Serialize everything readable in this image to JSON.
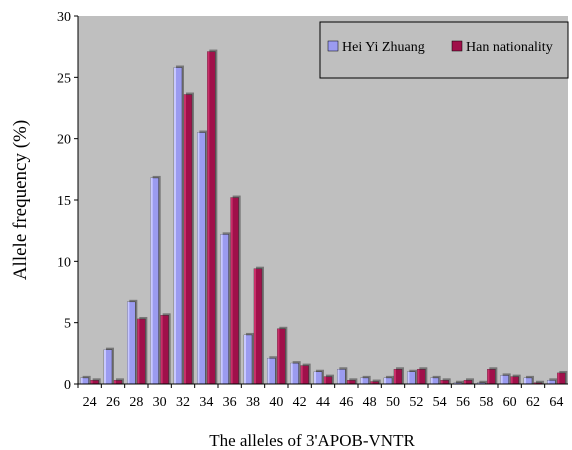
{
  "chart_data": {
    "type": "bar",
    "xlabel": "The alleles of 3'APOB-VNTR",
    "ylabel": "Allele frequency (%)",
    "ylim": [
      0,
      30
    ],
    "yticks": [
      0,
      5,
      10,
      15,
      20,
      25,
      30
    ],
    "grid": "none",
    "legend_position": "top-right",
    "categories": [
      "24",
      "26",
      "28",
      "30",
      "32",
      "34",
      "36",
      "38",
      "40",
      "42",
      "44",
      "46",
      "48",
      "50",
      "52",
      "54",
      "56",
      "58",
      "60",
      "62",
      "64"
    ],
    "series": [
      {
        "name": "Hei Yi Zhuang",
        "color": "#9b9bf0",
        "values": [
          0.5,
          2.8,
          6.7,
          16.8,
          25.8,
          20.5,
          12.2,
          4.0,
          2.1,
          1.7,
          1.0,
          1.2,
          0.5,
          0.5,
          1.0,
          0.5,
          0.1,
          0.1,
          0.7,
          0.5,
          0.3
        ]
      },
      {
        "name": "Han nationality",
        "color": "#a0104a",
        "values": [
          0.3,
          0.3,
          5.3,
          5.6,
          23.6,
          27.1,
          15.2,
          9.4,
          4.5,
          1.5,
          0.6,
          0.3,
          0.2,
          1.2,
          1.2,
          0.3,
          0.3,
          1.2,
          0.6,
          0.1,
          0.9
        ]
      }
    ]
  }
}
